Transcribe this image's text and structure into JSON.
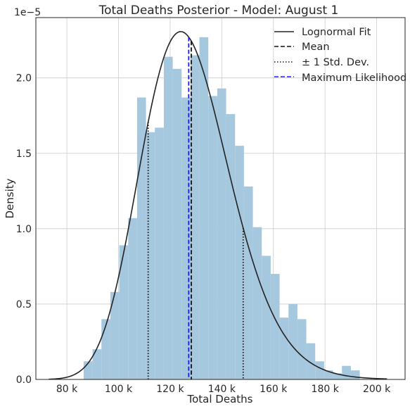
{
  "chart_data": {
    "type": "bar",
    "title": "Total Deaths Posterior - Model: August 1",
    "xlabel": "Total Deaths",
    "ylabel": "Density",
    "y_offset_label": "1e−5",
    "xlim": [
      68000,
      211000
    ],
    "ylim": [
      0,
      2.4
    ],
    "x_ticks": [
      80000,
      100000,
      120000,
      140000,
      160000,
      180000,
      200000
    ],
    "x_tick_labels": [
      "80 k",
      "100 k",
      "120 k",
      "140 k",
      "160 k",
      "180 k",
      "200 k"
    ],
    "y_ticks": [
      0,
      0.5,
      1.0,
      1.5,
      2.0
    ],
    "y_tick_labels": [
      "0.0",
      "0.5",
      "1.0",
      "1.5",
      "2.0"
    ],
    "grid": true,
    "legend_position": "top-right",
    "histogram": {
      "bin_start": 86500,
      "bin_width": 3450,
      "density_e5": [
        0.12,
        0.2,
        0.4,
        0.58,
        0.89,
        1.07,
        1.87,
        1.64,
        1.67,
        2.14,
        2.06,
        1.87,
        2.15,
        2.27,
        1.88,
        1.93,
        1.76,
        1.55,
        1.28,
        1.01,
        0.82,
        0.7,
        0.41,
        0.5,
        0.4,
        0.24,
        0.12,
        0.06,
        0.04,
        0.09,
        0.06
      ],
      "color": "#a6c8df"
    },
    "series": [
      {
        "name": "Lognormal Fit",
        "kind": "lognormal",
        "mu": 11.748,
        "sigma": 0.138,
        "color": "#222222",
        "style": "solid"
      },
      {
        "name": "Mean",
        "x": 128200,
        "color": "#111111",
        "style": "dashed"
      },
      {
        "name": "± 1 Std. Dev.",
        "x": [
          111500,
          148300
        ],
        "color": "#111111",
        "style": "dotted"
      },
      {
        "name": "Maximum Likelihood",
        "x": 127200,
        "color": "#1a1aff",
        "style": "dashed"
      }
    ]
  }
}
